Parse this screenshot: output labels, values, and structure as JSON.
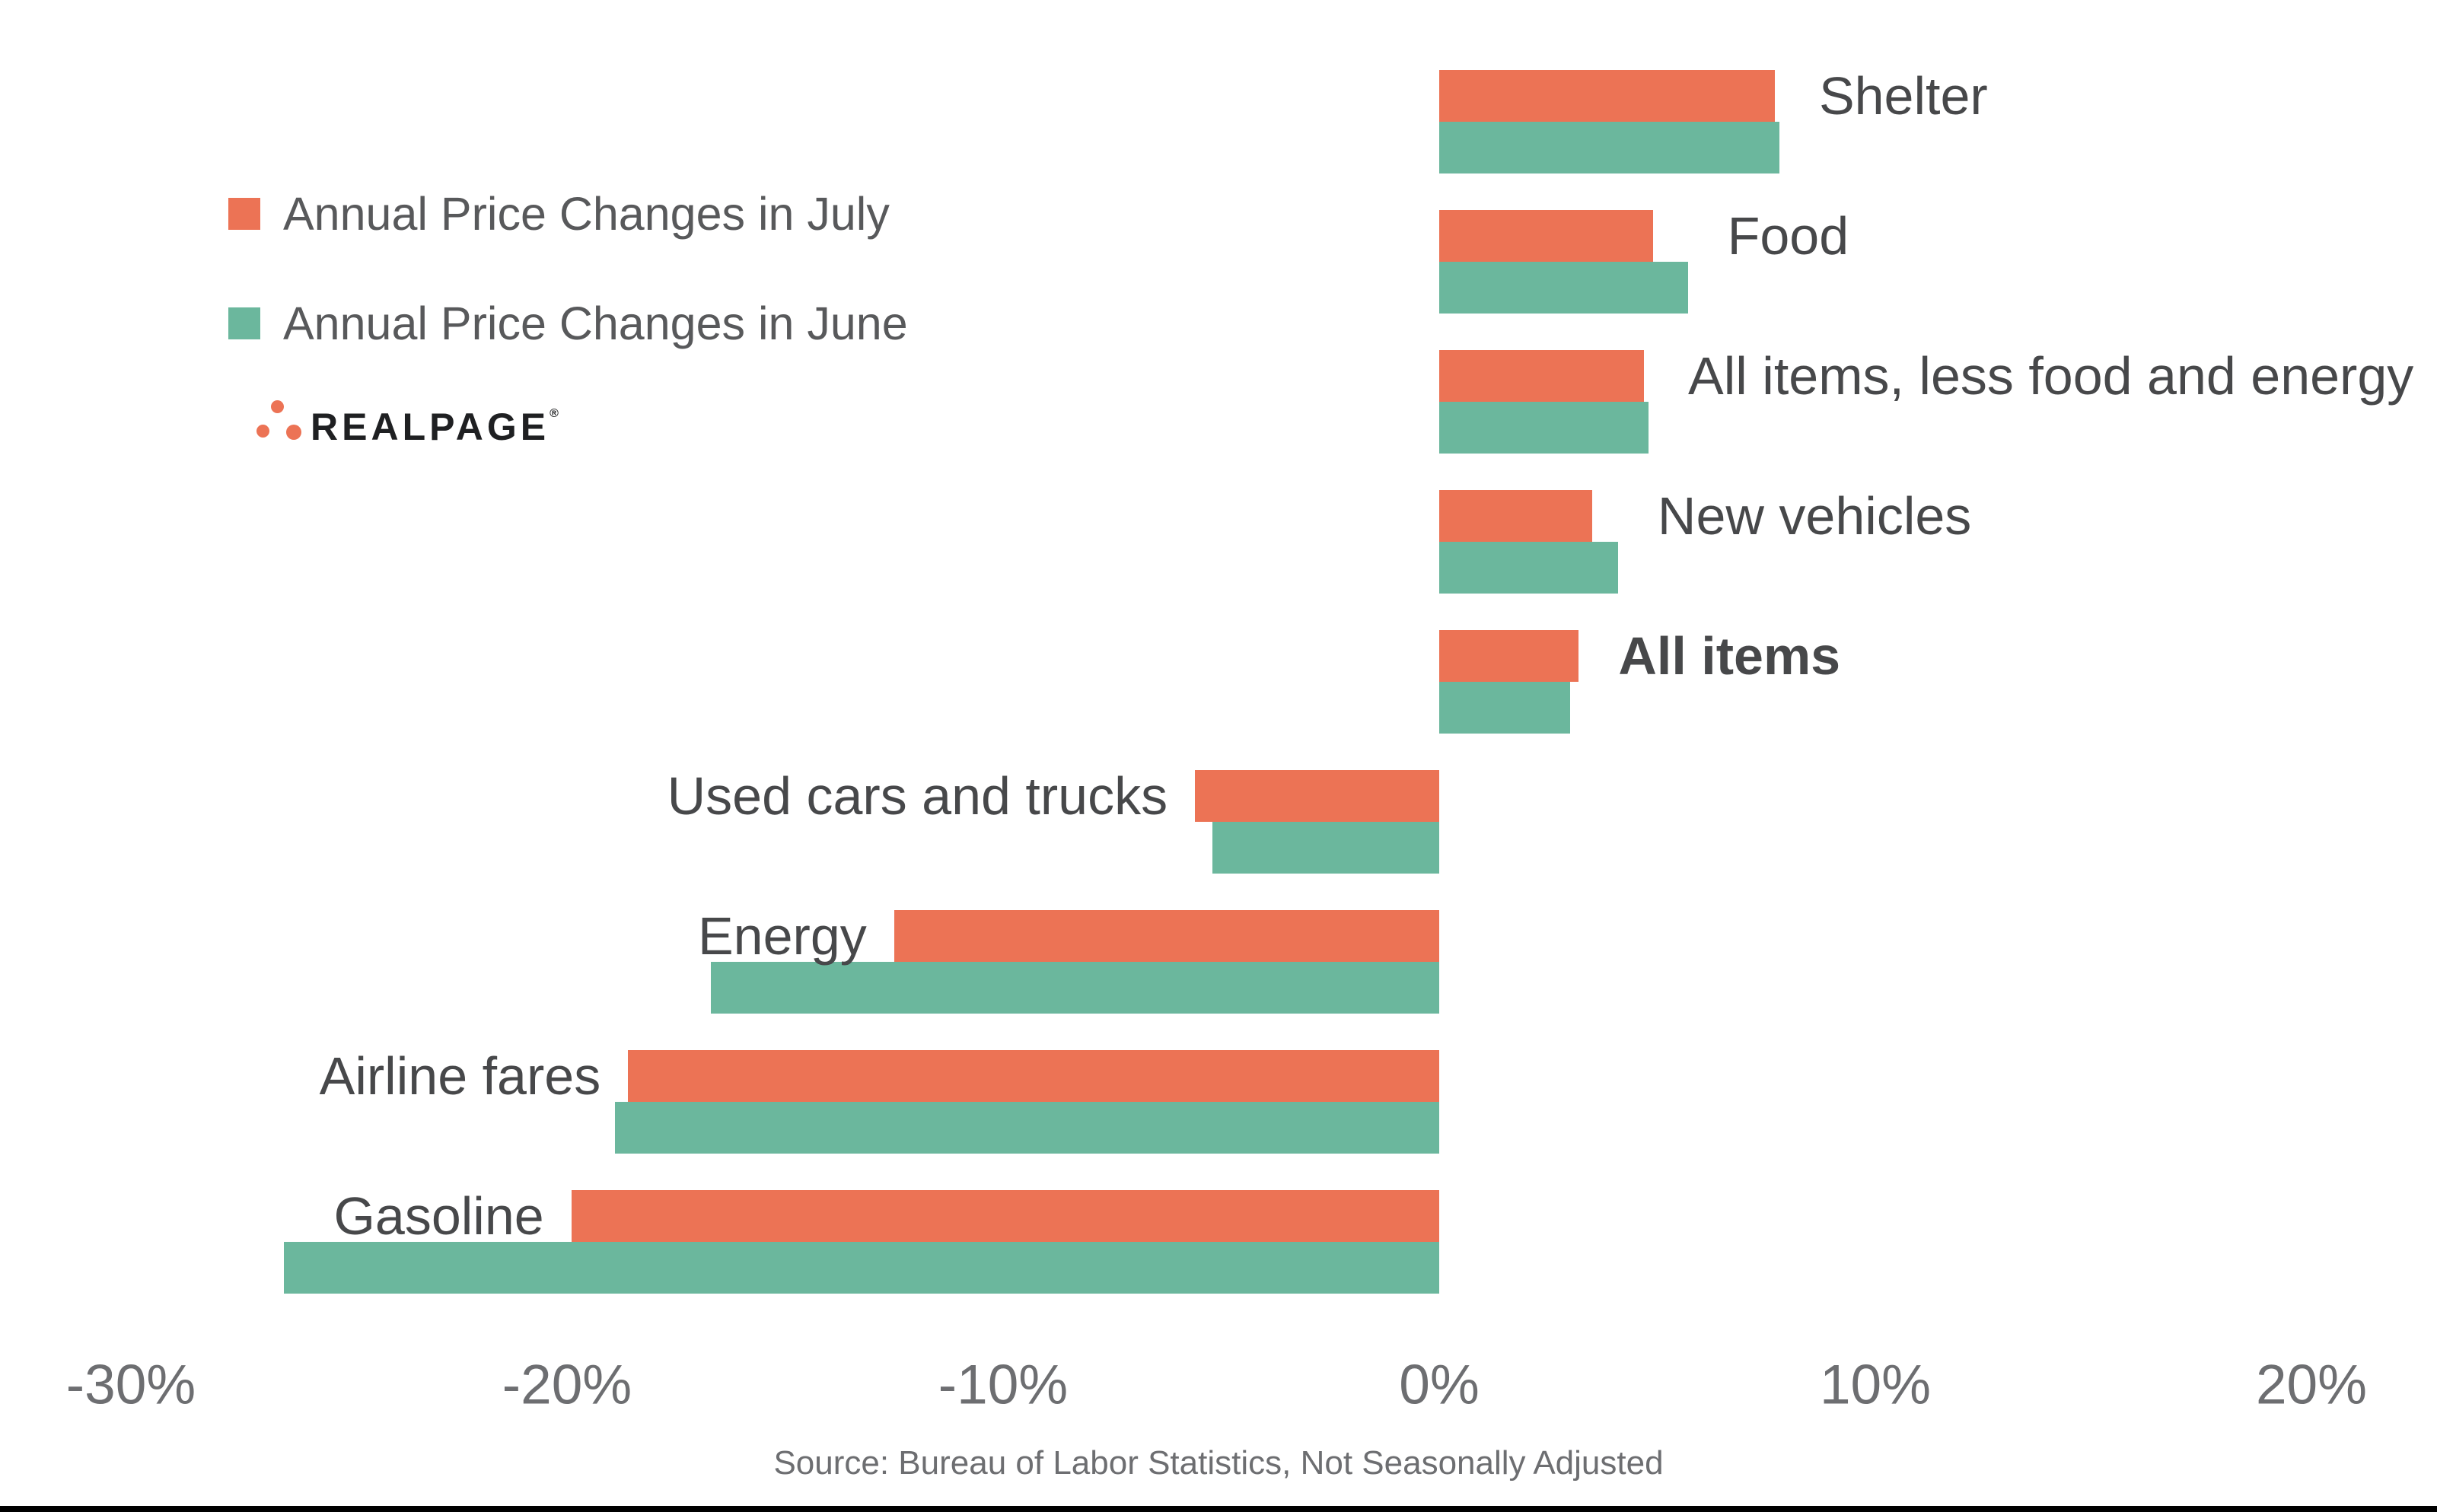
{
  "legend": {
    "items": [
      {
        "label": "Annual Price Changes in July",
        "color": "#EC7355"
      },
      {
        "label": "Annual Price Changes in June",
        "color": "#6BB79D"
      }
    ]
  },
  "brand": {
    "name": "REALPAGE",
    "registered_mark": "®",
    "dot_color": "#EC7355",
    "text_color": "#1f2022"
  },
  "chart_data": {
    "type": "bar",
    "orientation": "horizontal",
    "categories": [
      "Shelter",
      "Food",
      "All items, less food and energy",
      "New vehicles",
      "All items",
      "Used cars and trucks",
      "Energy",
      "Airline fares",
      "Gasoline"
    ],
    "series": [
      {
        "name": "Annual Price Changes in July",
        "color": "#EC7355",
        "values": [
          7.7,
          4.9,
          4.7,
          3.5,
          3.2,
          -5.6,
          -12.5,
          -18.6,
          -19.9
        ]
      },
      {
        "name": "Annual Price Changes in June",
        "color": "#6BB79D",
        "values": [
          7.8,
          5.7,
          4.8,
          4.1,
          3.0,
          -5.2,
          -16.7,
          -18.9,
          -26.5
        ]
      }
    ],
    "bold_categories": [
      "All items"
    ],
    "x_ticks": [
      {
        "value": -30,
        "label": "-30%"
      },
      {
        "value": -20,
        "label": "-20%"
      },
      {
        "value": -10,
        "label": "-10%"
      },
      {
        "value": 0,
        "label": "0%"
      },
      {
        "value": 10,
        "label": "10%"
      },
      {
        "value": 20,
        "label": "20%"
      }
    ],
    "xlim": [
      -33,
      23
    ],
    "unit": "percent",
    "grid": false,
    "legend_position": "top-left",
    "source": "Source: Bureau of Labor Statistics, Not Seasonally Adjusted"
  },
  "style": {
    "background": "#FFFFFF",
    "category_label_color": "#47484A",
    "axis_label_color": "#6D6E71",
    "source_color": "#6D6E71",
    "legend_text_color": "#58595B",
    "bottom_bar_color": "#000000"
  }
}
